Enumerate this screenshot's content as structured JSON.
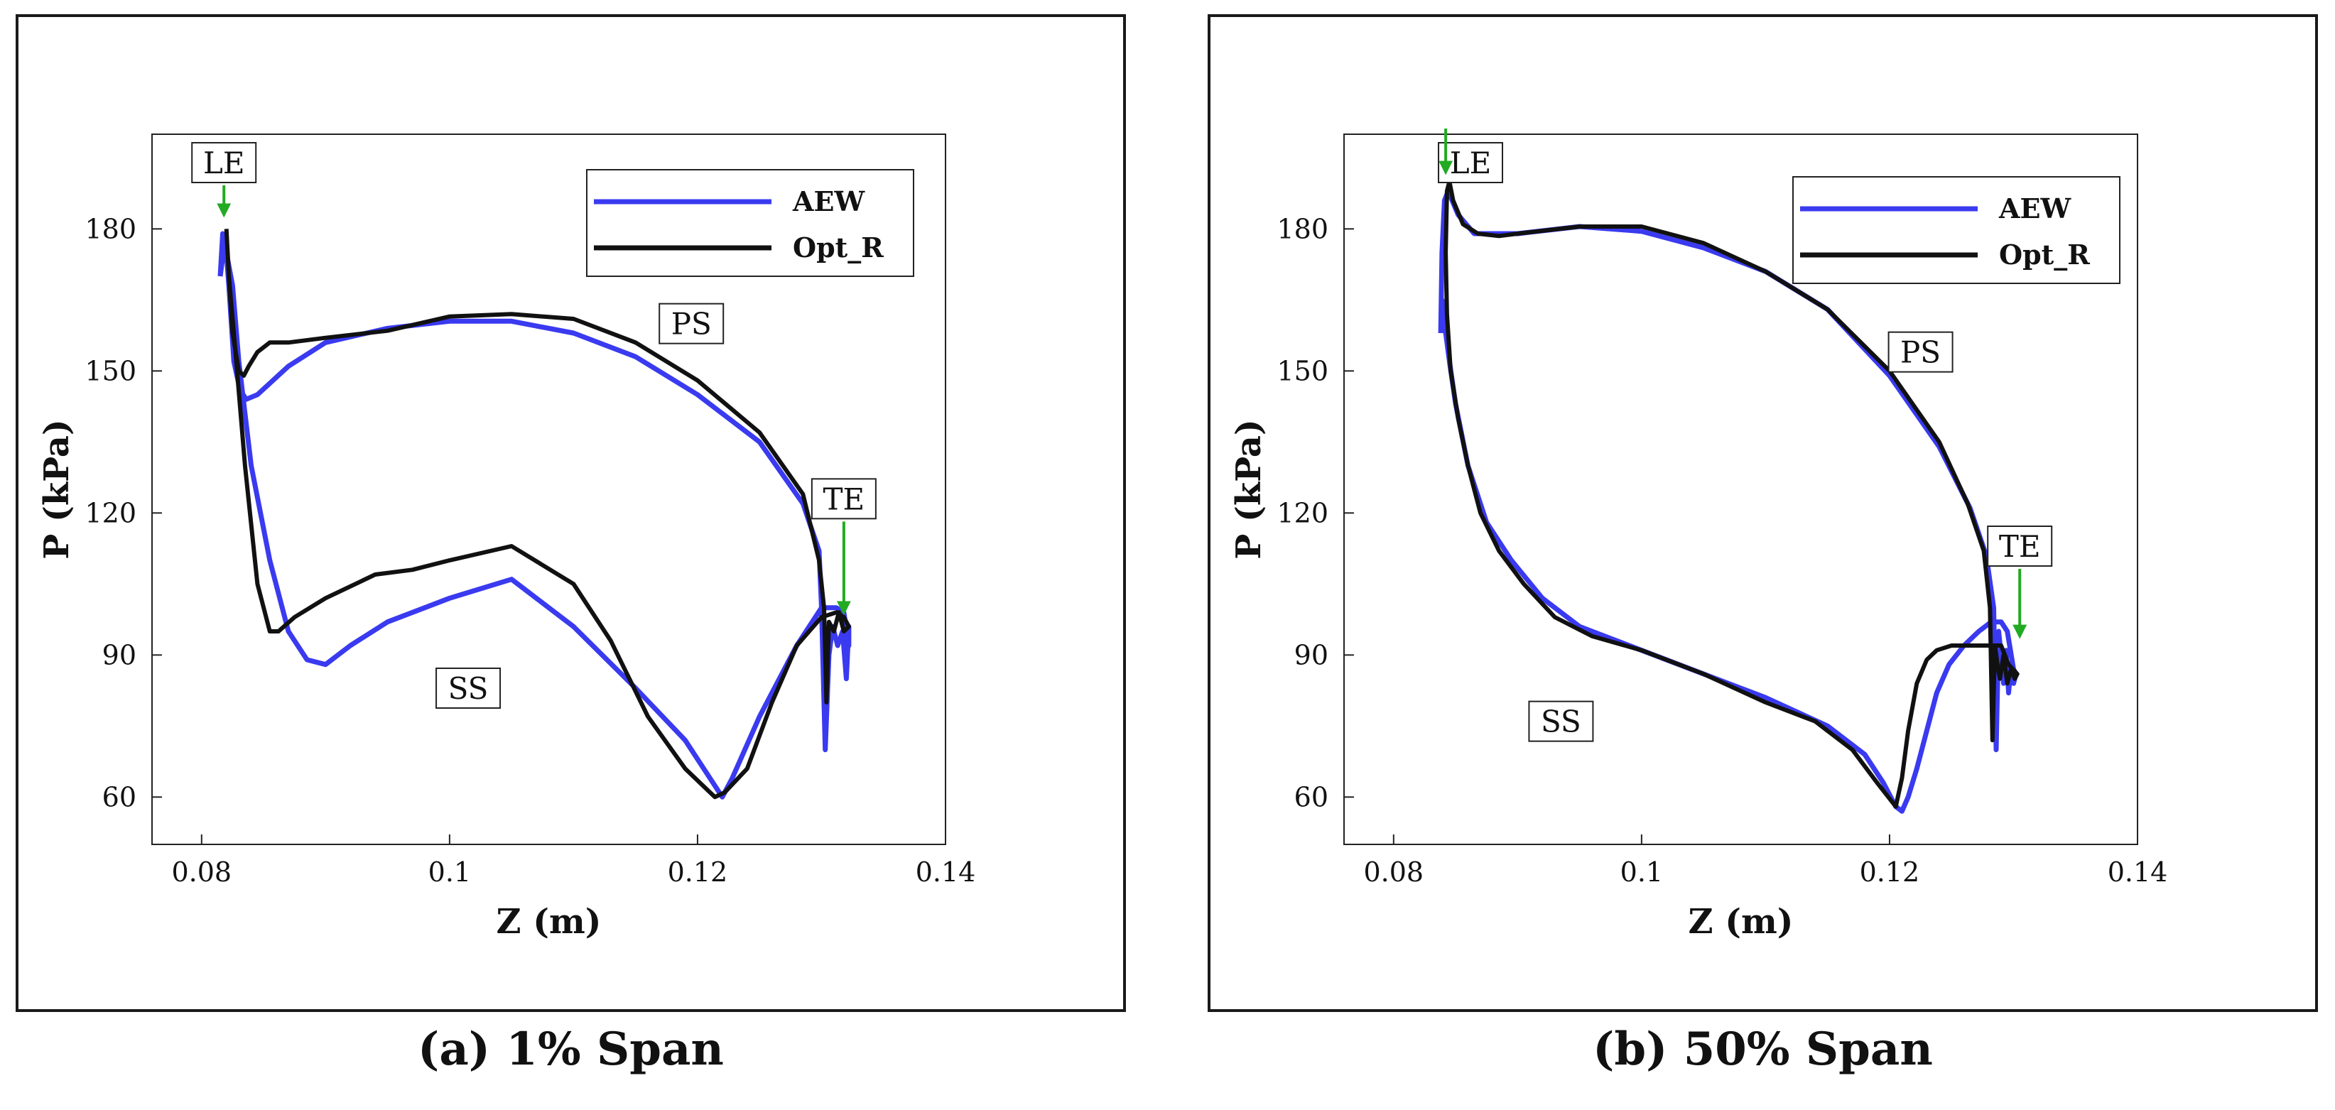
{
  "figure": {
    "captions": [
      "(a) 1% Span",
      "(b) 50% Span"
    ]
  },
  "colors": {
    "AEW": "#3a3af0",
    "Opt_R": "#111111",
    "arrow": "#22aa22",
    "frame": "#1a1a1a"
  },
  "chart_data": [
    {
      "type": "line",
      "title": "(a) 1% Span",
      "xlabel": "Z (m)",
      "ylabel": "P (kPa)",
      "xlim": [
        0.076,
        0.14
      ],
      "ylim": [
        50,
        200
      ],
      "xticks": [
        0.08,
        0.1,
        0.12,
        0.14
      ],
      "xtick_labels": [
        "0.08",
        "0.1",
        "0.12",
        "0.14"
      ],
      "yticks": [
        60,
        90,
        120,
        150,
        180
      ],
      "ytick_labels": [
        "60",
        "90",
        "120",
        "150",
        "180"
      ],
      "legend": {
        "position": "top-right",
        "entries": [
          "AEW",
          "Opt_R"
        ]
      },
      "series": [
        {
          "name": "AEW",
          "color": "#3a3af0",
          "x": [
            0.0815,
            0.0819,
            0.0822,
            0.0826,
            0.0831,
            0.0836,
            0.0845,
            0.087,
            0.09,
            0.095,
            0.1,
            0.105,
            0.11,
            0.115,
            0.12,
            0.125,
            0.1285,
            0.1298,
            0.13,
            0.1303,
            0.1306,
            0.1309,
            0.1313,
            0.1317,
            0.132,
            0.1322,
            0.1322,
            0.1318,
            0.1312,
            0.13,
            0.128,
            0.125,
            0.1228,
            0.122,
            0.1215,
            0.119,
            0.115,
            0.11,
            0.105,
            0.1,
            0.098,
            0.095,
            0.092,
            0.09,
            0.0885,
            0.087,
            0.0855,
            0.084,
            0.083,
            0.0825,
            0.082,
            0.0817,
            0.0815
          ],
          "y": [
            170,
            178,
            168,
            152,
            146,
            144,
            145,
            151,
            156,
            159,
            160.5,
            160.5,
            158,
            153,
            145,
            135,
            122,
            112,
            100,
            70,
            90,
            96,
            92,
            95,
            85,
            96,
            92,
            99,
            100,
            100,
            92,
            77,
            64,
            60,
            62,
            72,
            83,
            96,
            106,
            102,
            100,
            97,
            92,
            88,
            89,
            95,
            110,
            130,
            152,
            168,
            175,
            179,
            170
          ],
          "note": "closed loop: pressure side (upper) then suction side (lower)"
        },
        {
          "name": "Opt_R",
          "color": "#111111",
          "x": [
            0.082,
            0.0822,
            0.0825,
            0.083,
            0.0834,
            0.0838,
            0.0845,
            0.0855,
            0.087,
            0.09,
            0.095,
            0.1,
            0.105,
            0.11,
            0.115,
            0.12,
            0.125,
            0.1285,
            0.1298,
            0.1302,
            0.1304,
            0.1306,
            0.131,
            0.1314,
            0.1318,
            0.1322,
            0.1318,
            0.1312,
            0.13,
            0.128,
            0.126,
            0.124,
            0.1222,
            0.1214,
            0.121,
            0.119,
            0.116,
            0.113,
            0.11,
            0.105,
            0.1,
            0.097,
            0.094,
            0.09,
            0.0875,
            0.0862,
            0.0855,
            0.0845,
            0.0835,
            0.0827,
            0.0822,
            0.082
          ],
          "y": [
            180,
            170,
            158,
            150,
            149,
            151,
            154,
            156,
            156,
            157,
            158.5,
            161.5,
            162,
            161,
            156,
            148,
            137,
            124,
            110,
            100,
            80,
            97,
            95,
            99,
            95,
            96,
            98,
            99,
            98,
            92,
            80,
            66,
            61,
            60,
            61,
            66,
            77,
            93,
            105,
            113,
            110,
            108,
            107,
            102,
            98,
            95,
            95,
            105,
            130,
            155,
            170,
            180
          ]
        }
      ],
      "annotations": [
        {
          "text": "LE",
          "x": 0.0818,
          "y": 194,
          "arrow_to": [
            0.0818,
            183
          ]
        },
        {
          "text": "PS",
          "x": 0.1195,
          "y": 160
        },
        {
          "text": "TE",
          "x": 0.1318,
          "y": 123,
          "arrow_to": [
            0.1318,
            99
          ]
        },
        {
          "text": "SS",
          "x": 0.1015,
          "y": 83
        }
      ]
    },
    {
      "type": "line",
      "title": "(b) 50% Span",
      "xlabel": "Z (m)",
      "ylabel": "P (kPa)",
      "xlim": [
        0.076,
        0.14
      ],
      "ylim": [
        50,
        200
      ],
      "xticks": [
        0.08,
        0.1,
        0.12,
        0.14
      ],
      "xtick_labels": [
        "0.08",
        "0.1",
        "0.12",
        "0.14"
      ],
      "yticks": [
        60,
        90,
        120,
        150,
        180
      ],
      "ytick_labels": [
        "60",
        "90",
        "120",
        "150",
        "180"
      ],
      "legend": {
        "position": "top-right",
        "entries": [
          "AEW",
          "Opt_R"
        ]
      },
      "series": [
        {
          "name": "AEW",
          "color": "#3a3af0",
          "x": [
            0.0838,
            0.0839,
            0.0841,
            0.0844,
            0.0852,
            0.0865,
            0.09,
            0.095,
            0.1,
            0.105,
            0.11,
            0.115,
            0.12,
            0.124,
            0.1265,
            0.1278,
            0.1284,
            0.1286,
            0.1288,
            0.129,
            0.1292,
            0.1294,
            0.1296,
            0.1298,
            0.13,
            0.1302,
            0.13,
            0.1295,
            0.129,
            0.1282,
            0.1272,
            0.126,
            0.1248,
            0.1238,
            0.123,
            0.1222,
            0.1215,
            0.121,
            0.1205,
            0.1195,
            0.118,
            0.115,
            0.11,
            0.105,
            0.1,
            0.095,
            0.092,
            0.0895,
            0.0875,
            0.086,
            0.085,
            0.0845,
            0.0841,
            0.0839,
            0.0838
          ],
          "y": [
            158,
            175,
            186,
            188,
            183,
            179,
            179,
            180.5,
            179.5,
            176,
            171,
            163,
            149,
            134,
            121,
            111,
            100,
            70,
            95,
            90,
            84,
            91,
            82,
            88,
            84,
            86,
            87,
            95,
            97,
            97,
            95,
            92,
            88,
            82,
            74,
            66,
            60,
            57,
            58,
            63,
            69,
            75,
            81,
            86,
            91,
            96,
            102,
            110,
            118,
            130,
            143,
            152,
            160,
            165,
            158
          ]
        },
        {
          "name": "Opt_R",
          "color": "#111111",
          "x": [
            0.0842,
            0.0843,
            0.0845,
            0.0848,
            0.0856,
            0.0868,
            0.0885,
            0.09,
            0.095,
            0.1,
            0.105,
            0.11,
            0.115,
            0.12,
            0.124,
            0.1263,
            0.1276,
            0.1281,
            0.1283,
            0.1285,
            0.1287,
            0.1289,
            0.1292,
            0.1295,
            0.1298,
            0.1301,
            0.1303,
            0.1296,
            0.129,
            0.128,
            0.1265,
            0.125,
            0.1238,
            0.123,
            0.1222,
            0.1215,
            0.121,
            0.1205,
            0.119,
            0.117,
            0.114,
            0.11,
            0.105,
            0.1,
            0.096,
            0.093,
            0.0905,
            0.0885,
            0.087,
            0.086,
            0.0852,
            0.0846,
            0.0843,
            0.0842
          ],
          "y": [
            175,
            188,
            190,
            186,
            181,
            179,
            178.5,
            179,
            180.5,
            180.5,
            177,
            171,
            163,
            150,
            135,
            122,
            112,
            100,
            72,
            92,
            88,
            85,
            90,
            84,
            87,
            85,
            86,
            88,
            92,
            92,
            92,
            92,
            91,
            89,
            84,
            74,
            64,
            58,
            63,
            70,
            76,
            80,
            86,
            91,
            94,
            98,
            105,
            112,
            120,
            130,
            140,
            150,
            162,
            175
          ]
        }
      ],
      "annotations": [
        {
          "text": "LE",
          "x": 0.0862,
          "y": 194,
          "arrow_to": [
            0.0842,
            192
          ]
        },
        {
          "text": "PS",
          "x": 0.1225,
          "y": 154
        },
        {
          "text": "TE",
          "x": 0.1305,
          "y": 113,
          "arrow_to": [
            0.1305,
            94
          ]
        },
        {
          "text": "SS",
          "x": 0.0935,
          "y": 76
        }
      ]
    }
  ]
}
